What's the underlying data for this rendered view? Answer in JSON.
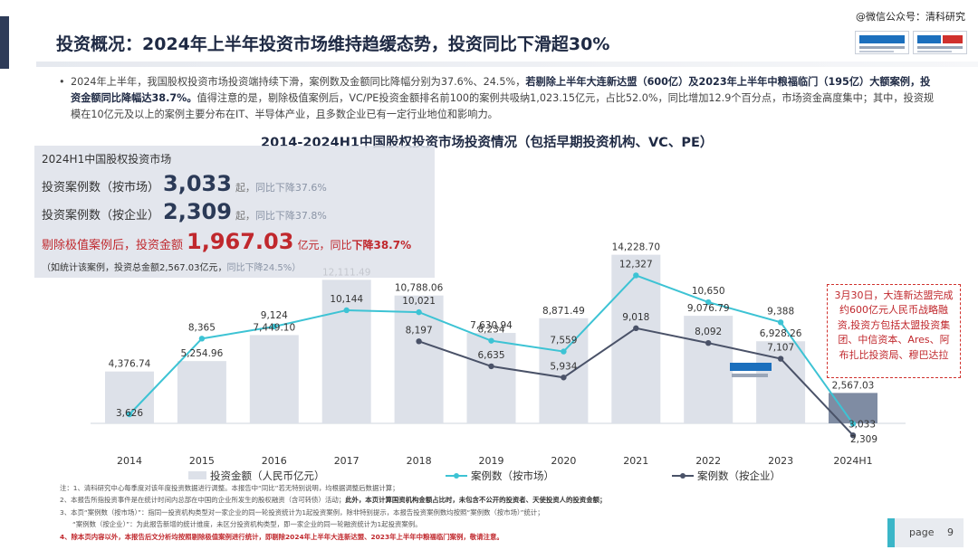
{
  "header": {
    "title": "投资概况：2024年上半年投资市场维持趋缓态势，投资同比下滑超30%",
    "watermark": "@微信公众号：清科研究"
  },
  "paragraph": {
    "part1": "2024年上半年，我国股权投资市场投资端持续下滑，案例数及金额同比降幅分别为37.6%、24.5%，",
    "part2_bold": "若剔除上半年大连新达盟（600亿）及2023年上半年中粮福临门（195亿）大额案例，投资金额同比降幅达38.7%。",
    "part3": "值得注意的是，剔除极值案例后，VC/PE投资金额排名前100的案例共吸纳1,023.15亿元，占比52.0%，同比增加12.9个百分点，市场资金高度集中；其中，投资规模在10亿元及以上的案例主要分布在IT、半导体产业，且多数企业已有一定行业地位和影响力。"
  },
  "stats": {
    "heading": "2024H1中国股权投资市场",
    "r1_label": "投资案例数（按市场）",
    "r1_value": "3,033",
    "r1_unit": "起，",
    "r1_note": "同比下降37.6%",
    "r2_label": "投资案例数（按企业）",
    "r2_value": "2,309",
    "r2_unit": "起，",
    "r2_note": "同比下降37.8%",
    "r3_label": "剔除极值案例后，投资金额",
    "r3_value": "1,967.03",
    "r3_unit": "亿元，",
    "r3_note_a": "同比",
    "r3_note_b": "下降38.7%",
    "r4_a": "（如统计该案例，投资总金额2,567.03亿元，",
    "r4_b": "同比下降24.5%）"
  },
  "callout": {
    "text": "3月30日，大连新达盟完成约600亿元人民币战略融资,投资方包括太盟投资集团、中信资本、Ares、阿布扎比投资局、穆巴达拉"
  },
  "footnotes": {
    "l1": "注：1、清科研究中心每季度对该年度投资数据进行调整。本报告中“同比”若无特别说明，均根据调整后数据计算；",
    "l2a": "2、本报告所指投资事件是在统计时间内总部在中国的企业所发生的股权融资（含可转债）活动；",
    "l2b": "此外，本页计算国资机构金额占比时，未包含不公开的投资者、天使投资人的投资金额；",
    "l3": "3、本页“案例数（按市场）”：指同一投资机构类型对一家企业的同一轮投资统计为1起投资案例，除非特别提示，本报告投资案例数均按照“案例数（按市场）”统计；",
    "l3b": "“案例数（按企业）”：为此报告新增的统计维度，未区分投资机构类型，即一家企业的同一轮融资统计为1起投资案例。",
    "l4": "4、除本页内容以外，本报告后文分析均按照剔除极值案例进行统计，即剔除2024年上半年大连新达盟、2023年上半年中粮福临门案例，敬请注意。"
  },
  "page": {
    "label": "page",
    "number": "9"
  },
  "chart_data": {
    "type": "bar",
    "title": "2014-2024H1中国股权投资市场投资情况（包括早期投资机构、VC、PE）",
    "categories": [
      "2014",
      "2015",
      "2016",
      "2017",
      "2018",
      "2019",
      "2020",
      "2021",
      "2022",
      "2023",
      "2024H1"
    ],
    "series": [
      {
        "name": "投资金额（人民币亿元）",
        "type": "bar",
        "values": [
          4376.74,
          5254.96,
          7449.1,
          12111.49,
          10788.06,
          7630.94,
          8871.49,
          14228.7,
          9076.79,
          6928.26,
          2567.03
        ],
        "labels": [
          "4,376.74",
          "5,254.96",
          "7,449.10",
          "12,111.49",
          "10,788.06",
          "7,630.94",
          "8,871.49",
          "14,228.70",
          "9,076.79",
          "6,928.26",
          "2,567.03"
        ]
      },
      {
        "name": "案例数（按市场）",
        "type": "line",
        "values": [
          3626,
          8365,
          9124,
          10144,
          10021,
          8234,
          7559,
          12327,
          10650,
          9388,
          3033
        ],
        "labels": [
          "3,626",
          "8,365",
          "9,124",
          "10,144",
          "10,021",
          "8,234",
          "7,559",
          "12,327",
          "10,650",
          "9,388",
          "3,033"
        ]
      },
      {
        "name": "案例数（按企业）",
        "type": "line",
        "values": [
          null,
          null,
          null,
          null,
          8197,
          6635,
          5934,
          9018,
          8092,
          7107,
          2309
        ],
        "labels": [
          "",
          "",
          "",
          "",
          "8,197",
          "6,635",
          "5,934",
          "9,018",
          "8,092",
          "7,107",
          "2,309"
        ]
      }
    ],
    "colors": {
      "bar": "#dde1e9",
      "bar_last": "#7f8ca3",
      "line_market": "#3dc3d4",
      "line_company": "#4a5268"
    }
  }
}
